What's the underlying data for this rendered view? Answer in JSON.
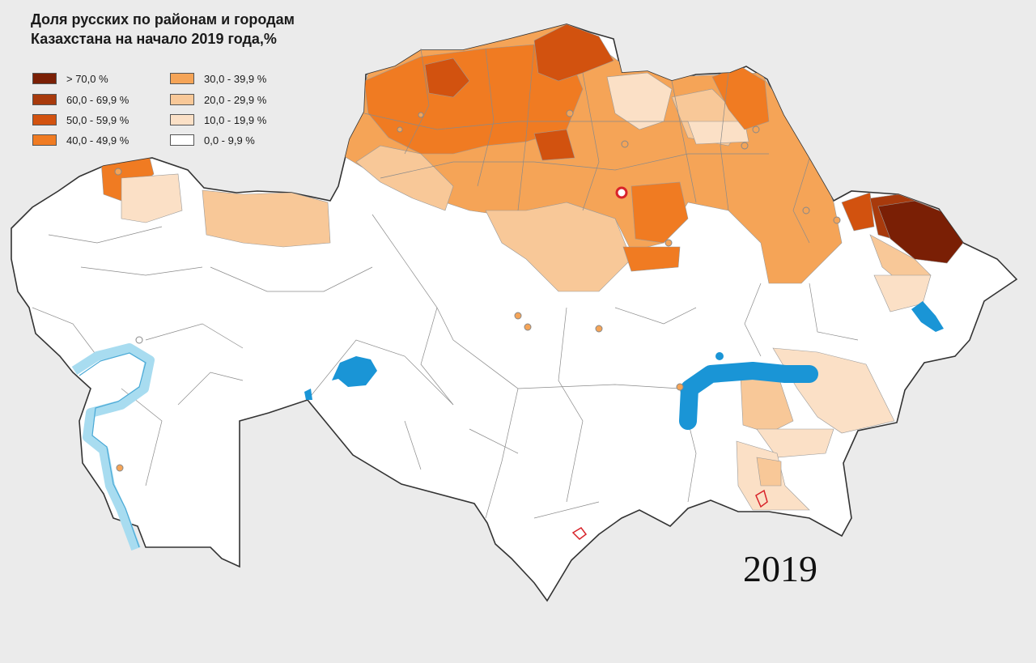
{
  "title_line1": "Доля русских по районам и городам",
  "title_line2": "Казахстана на начало 2019 года,%",
  "legend": [
    {
      "label": "> 70,0 %",
      "color": "#7a1f05"
    },
    {
      "label": "60,0 - 69,9 %",
      "color": "#a83a0c"
    },
    {
      "label": "50,0 - 59,9 %",
      "color": "#d2520f"
    },
    {
      "label": "40,0 - 49,9 %",
      "color": "#f07b22"
    },
    {
      "label": "30,0 - 39,9 %",
      "color": "#f5a457"
    },
    {
      "label": "20,0 - 29,9 %",
      "color": "#f8c898"
    },
    {
      "label": "10,0 - 19,9 %",
      "color": "#fbe0c6"
    },
    {
      "label": "0,0 - 9,9 %",
      "color": "#ffffff"
    }
  ],
  "year_label": "2019",
  "colors": {
    "background": "#ebebeb",
    "water": "#1a95d6",
    "caspian": "#a8dcf0",
    "city_marker": "#d8232a"
  }
}
